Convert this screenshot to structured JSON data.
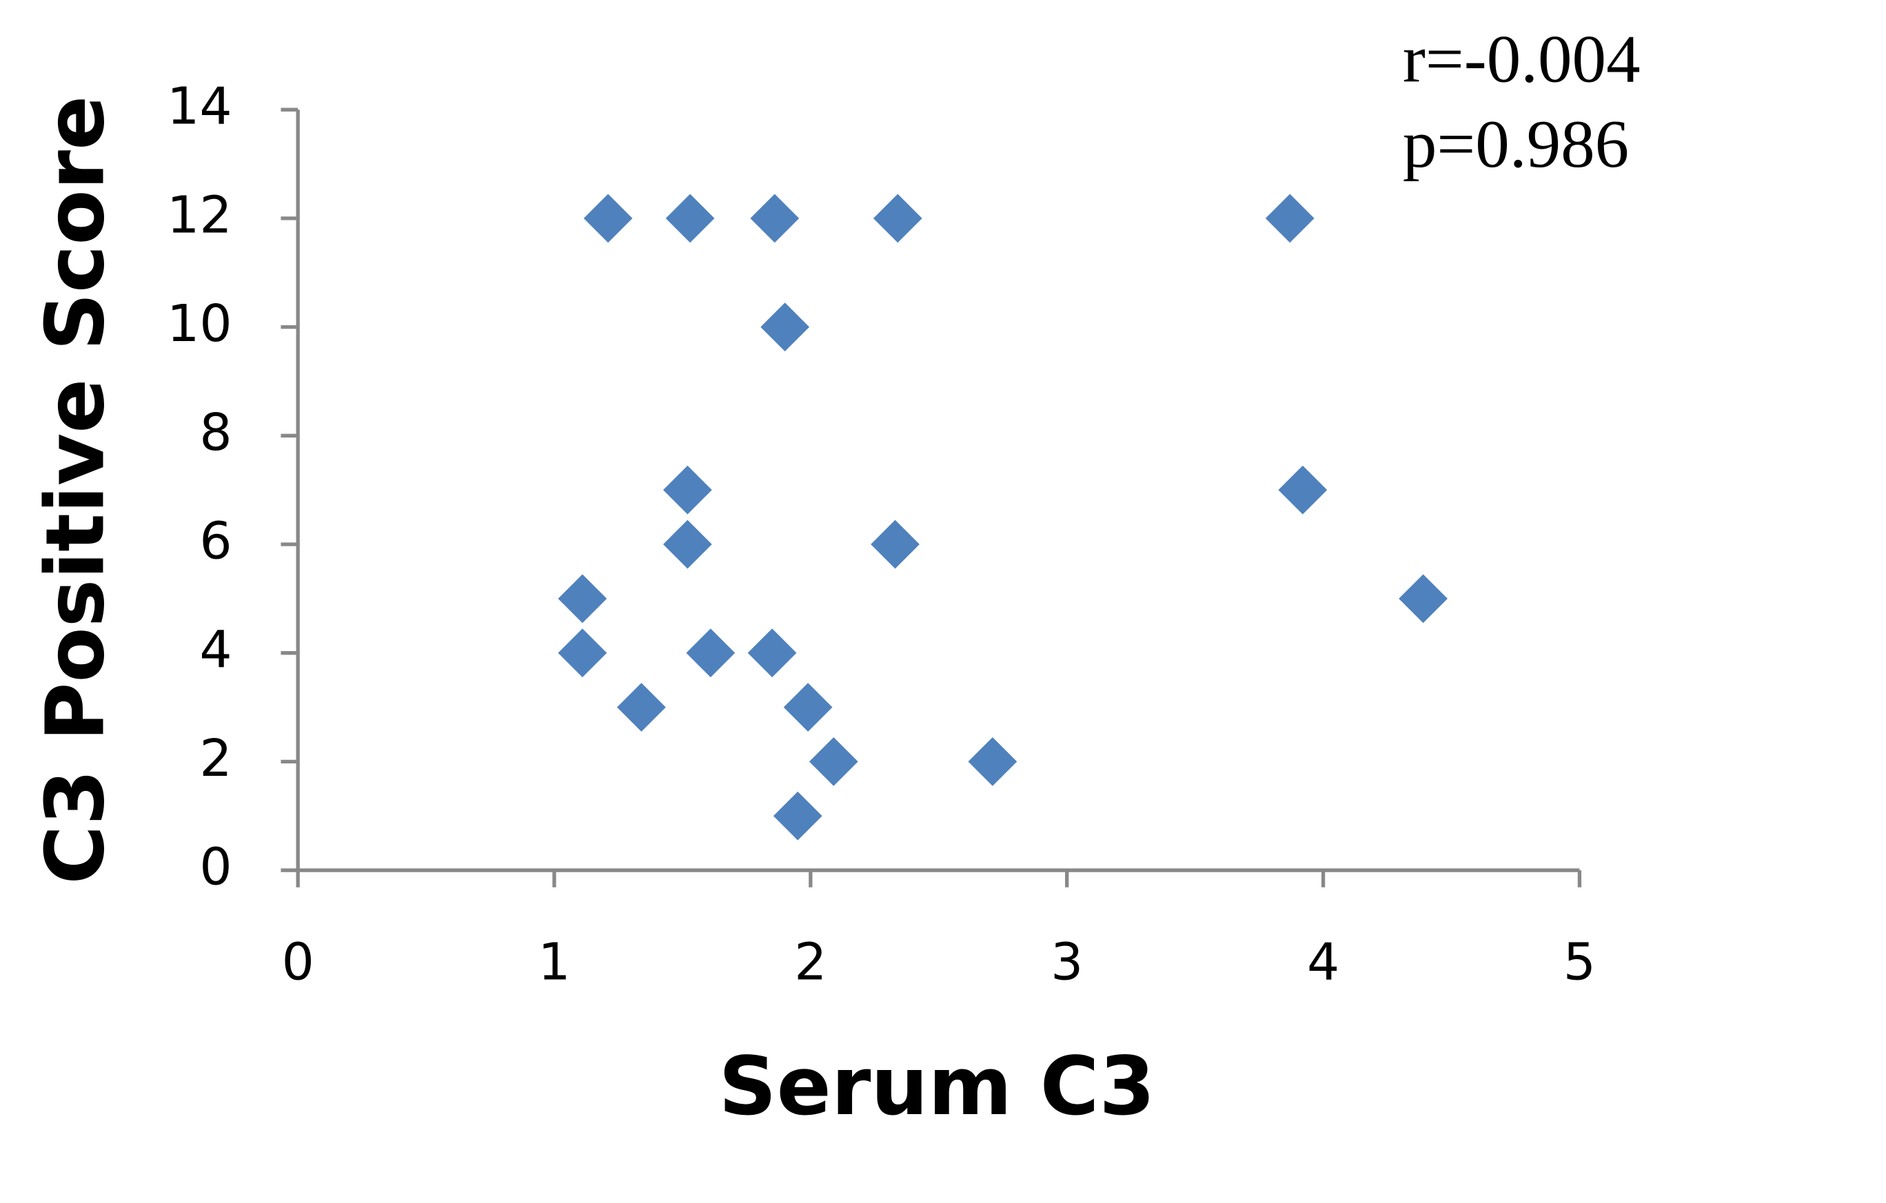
{
  "chart_data": {
    "type": "scatter",
    "xlabel": "Serum C3",
    "ylabel": "C3 Positive Score",
    "annotations": [
      "r=-0.004",
      "p=0.986"
    ],
    "color": "#4f81bd",
    "x": [
      1.21,
      1.53,
      1.86,
      2.34,
      3.87,
      1.9,
      1.52,
      3.92,
      1.52,
      2.33,
      1.11,
      4.39,
      1.11,
      1.61,
      1.85,
      1.34,
      1.99,
      2.09,
      2.71,
      1.95
    ],
    "values": [
      12,
      12,
      12,
      12,
      12,
      10,
      7,
      7,
      6,
      6,
      5,
      5,
      4,
      4,
      4,
      3,
      3,
      2,
      2,
      1
    ],
    "xlim": [
      0,
      5
    ],
    "ylim": [
      0,
      14
    ],
    "xticks": [
      0,
      1,
      2,
      3,
      4,
      5
    ],
    "yticks": [
      0,
      2,
      4,
      6,
      8,
      10,
      12,
      14
    ],
    "grid": false
  }
}
